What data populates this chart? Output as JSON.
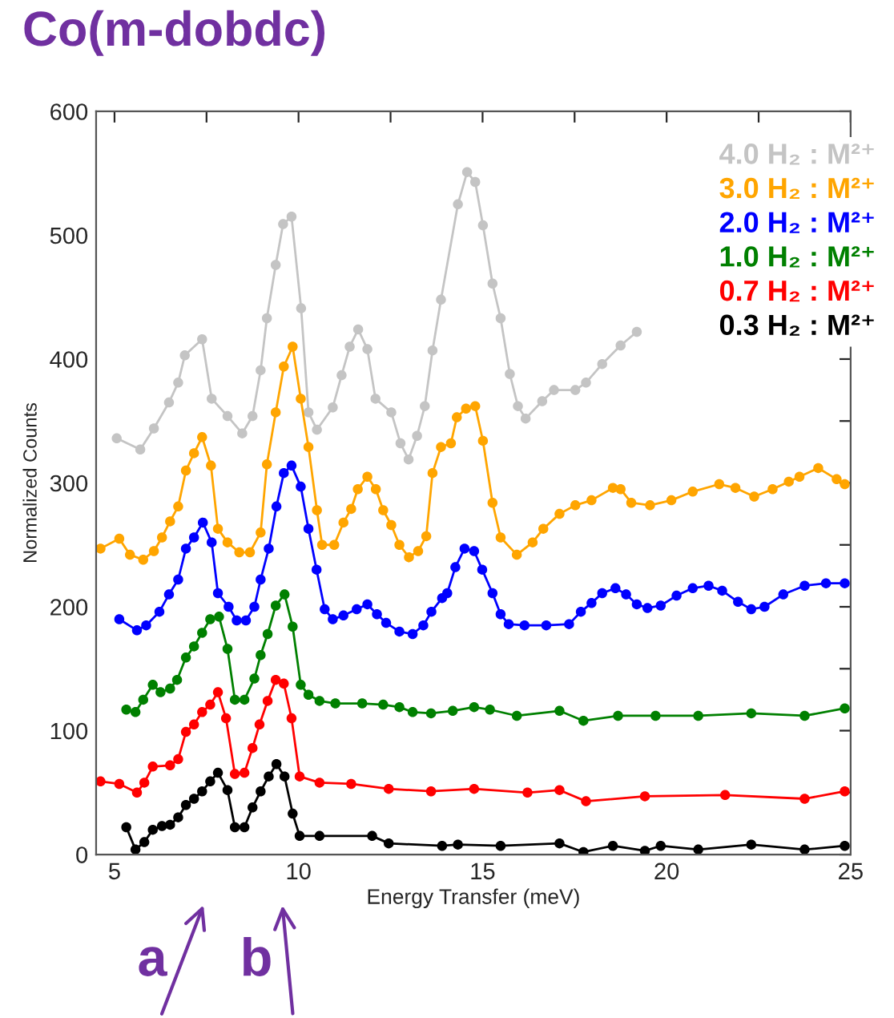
{
  "chart_data": {
    "type": "line",
    "title": "Co(m-dobdc)",
    "xlabel": "Energy Transfer (meV)",
    "ylabel": "Normalized Counts",
    "xlim": [
      4.5,
      25
    ],
    "ylim": [
      0,
      600
    ],
    "xticks": [
      5,
      {
        "value": 7.5,
        "label": null
      },
      10,
      {
        "value": 12.5,
        "label": null
      },
      15,
      {
        "value": 17.5,
        "label": null
      },
      20,
      {
        "value": 22.5,
        "label": null
      },
      25
    ],
    "yticks": [
      0,
      {
        "value": 50,
        "label": null
      },
      100,
      {
        "value": 150,
        "label": null
      },
      200,
      {
        "value": 250,
        "label": null
      },
      300,
      {
        "value": 350,
        "label": null
      },
      400,
      {
        "value": 450,
        "label": null
      },
      500,
      {
        "value": 550,
        "label": null
      },
      600
    ],
    "grid": false,
    "legend": "top right",
    "marker": "circle",
    "line_style": "solid",
    "annotations": [
      "a",
      "b"
    ],
    "series": [
      {
        "name": "4.0 H₂ : M²⁺",
        "color": "#c4c4c4",
        "x": [
          5.06,
          5.7,
          6.07,
          6.48,
          6.73,
          6.91,
          7.38,
          7.64,
          8.07,
          8.47,
          8.75,
          8.97,
          9.14,
          9.38,
          9.58,
          9.81,
          10.07,
          10.27,
          10.5,
          10.93,
          11.17,
          11.39,
          11.62,
          11.87,
          12.09,
          12.52,
          12.77,
          12.99,
          13.22,
          13.43,
          13.64,
          13.87,
          14.33,
          14.58,
          14.8,
          15.01,
          15.27,
          15.49,
          15.74,
          15.96,
          16.17,
          16.62,
          16.94,
          17.52,
          17.81,
          18.25,
          18.75,
          19.19
        ],
        "values": [
          336,
          327,
          344,
          365,
          381,
          403,
          416,
          368,
          354,
          340,
          354,
          391,
          433,
          476,
          509,
          515,
          441,
          357,
          343,
          361,
          387,
          410,
          424,
          408,
          368,
          357,
          332,
          319,
          338,
          362,
          407,
          448,
          525,
          551,
          543,
          508,
          461,
          433,
          388,
          362,
          352,
          366,
          375,
          375,
          381,
          396,
          411,
          422
        ]
      },
      {
        "name": "3.0 H₂ : M²⁺",
        "color": "#ffa500",
        "x": [
          4.62,
          5.13,
          5.42,
          5.78,
          6.07,
          6.29,
          6.51,
          6.73,
          6.94,
          7.16,
          7.38,
          7.62,
          7.81,
          8.07,
          8.39,
          8.68,
          8.97,
          9.14,
          9.38,
          9.6,
          9.84,
          10.06,
          10.27,
          10.5,
          10.64,
          10.97,
          11.22,
          11.43,
          11.61,
          11.87,
          12.1,
          12.3,
          12.52,
          12.74,
          13.0,
          13.25,
          13.47,
          13.64,
          13.87,
          14.14,
          14.3,
          14.55,
          14.8,
          15.01,
          15.27,
          15.49,
          15.93,
          16.36,
          16.65,
          17.09,
          17.52,
          17.96,
          18.54,
          18.75,
          19.04,
          19.55,
          20.13,
          20.71,
          21.43,
          21.87,
          22.38,
          22.88,
          23.32,
          23.61,
          24.12,
          24.62,
          24.84
        ],
        "values": [
          247,
          255,
          242,
          238,
          245,
          256,
          269,
          281,
          310,
          324,
          337,
          314,
          263,
          252,
          244,
          244,
          260,
          315,
          357,
          394,
          410,
          368,
          329,
          278,
          250,
          250,
          268,
          279,
          295,
          305,
          295,
          278,
          266,
          250,
          240,
          245,
          257,
          308,
          329,
          332,
          353,
          360,
          362,
          334,
          284,
          256,
          242,
          252,
          263,
          275,
          282,
          286,
          296,
          295,
          284,
          282,
          286,
          293,
          299,
          296,
          289,
          295,
          301,
          305,
          312,
          303,
          299
        ]
      },
      {
        "name": "2.0 H₂ : M²⁺",
        "color": "#0000ff",
        "x": [
          5.13,
          5.61,
          5.86,
          6.22,
          6.48,
          6.73,
          6.94,
          7.16,
          7.4,
          7.64,
          7.81,
          8.1,
          8.32,
          8.57,
          8.8,
          8.97,
          9.19,
          9.4,
          9.6,
          9.81,
          10.06,
          10.27,
          10.49,
          10.71,
          10.93,
          11.22,
          11.58,
          11.87,
          12.13,
          12.38,
          12.74,
          13.1,
          13.39,
          13.61,
          13.9,
          14.04,
          14.26,
          14.51,
          14.77,
          14.99,
          15.27,
          15.49,
          15.71,
          16.14,
          16.73,
          17.35,
          17.67,
          17.96,
          18.25,
          18.61,
          18.9,
          19.19,
          19.48,
          19.84,
          20.27,
          20.71,
          21.14,
          21.51,
          21.94,
          22.3,
          22.66,
          23.17,
          23.75,
          24.33,
          24.84
        ],
        "values": [
          190,
          181,
          185,
          196,
          210,
          222,
          247,
          256,
          268,
          252,
          211,
          200,
          189,
          189,
          200,
          222,
          247,
          281,
          308,
          314,
          297,
          263,
          230,
          198,
          190,
          193,
          198,
          202,
          194,
          187,
          180,
          178,
          185,
          196,
          207,
          211,
          232,
          247,
          245,
          230,
          211,
          194,
          186,
          185,
          185,
          186,
          196,
          203,
          211,
          215,
          210,
          202,
          199,
          201,
          209,
          215,
          217,
          213,
          204,
          198,
          200,
          210,
          217,
          219,
          219
        ]
      },
      {
        "name": "1.0 H₂ : M²⁺",
        "color": "#008000",
        "x": [
          5.32,
          5.57,
          5.78,
          6.04,
          6.25,
          6.51,
          6.7,
          6.94,
          7.16,
          7.38,
          7.6,
          7.84,
          8.07,
          8.27,
          8.53,
          8.8,
          8.97,
          9.16,
          9.38,
          9.62,
          9.84,
          10.06,
          10.27,
          10.57,
          11.0,
          11.73,
          12.3,
          12.74,
          13.1,
          13.6,
          14.19,
          14.77,
          15.2,
          15.93,
          17.09,
          17.74,
          18.68,
          19.7,
          20.86,
          22.3,
          23.75,
          24.84
        ],
        "values": [
          117,
          115,
          125,
          137,
          131,
          134,
          141,
          159,
          168,
          179,
          190,
          192,
          166,
          125,
          125,
          142,
          161,
          178,
          201,
          210,
          184,
          137,
          129,
          124,
          122,
          122,
          121,
          119,
          115,
          114,
          116,
          119,
          117,
          112,
          116,
          108,
          112,
          112,
          112,
          114,
          112,
          118
        ]
      },
      {
        "name": "0.7 H₂ : M²⁺",
        "color": "#ff0000",
        "x": [
          4.62,
          5.13,
          5.61,
          5.81,
          6.04,
          6.51,
          6.73,
          6.94,
          7.16,
          7.38,
          7.6,
          7.81,
          8.03,
          8.27,
          8.53,
          8.75,
          8.94,
          9.16,
          9.38,
          9.6,
          9.81,
          10.03,
          10.57,
          11.43,
          12.45,
          13.6,
          14.77,
          16.22,
          17.09,
          17.81,
          19.41,
          21.59,
          23.75,
          24.84
        ],
        "values": [
          59,
          57,
          50,
          58,
          71,
          72,
          77,
          99,
          105,
          115,
          121,
          131,
          110,
          65,
          66,
          86,
          105,
          124,
          141,
          138,
          110,
          63,
          58,
          57,
          53,
          51,
          53,
          50,
          52,
          43,
          47,
          48,
          45,
          51
        ]
      },
      {
        "name": "0.3 H₂ : M²⁺",
        "color": "#000000",
        "x": [
          5.32,
          5.57,
          5.81,
          6.04,
          6.29,
          6.51,
          6.73,
          6.94,
          7.16,
          7.38,
          7.6,
          7.81,
          8.07,
          8.27,
          8.53,
          8.75,
          8.97,
          9.19,
          9.4,
          9.62,
          9.84,
          10.03,
          10.57,
          12.0,
          12.45,
          13.9,
          14.33,
          15.49,
          17.09,
          17.74,
          18.54,
          19.41,
          19.84,
          20.86,
          22.3,
          23.75,
          24.84
        ],
        "values": [
          22,
          4,
          10,
          20,
          23,
          24,
          30,
          40,
          45,
          51,
          59,
          66,
          52,
          22,
          22,
          38,
          51,
          63,
          73,
          63,
          33,
          15,
          15,
          15,
          9,
          7,
          8,
          7,
          9,
          2,
          7,
          3,
          7,
          4,
          8,
          4,
          7
        ]
      }
    ]
  }
}
